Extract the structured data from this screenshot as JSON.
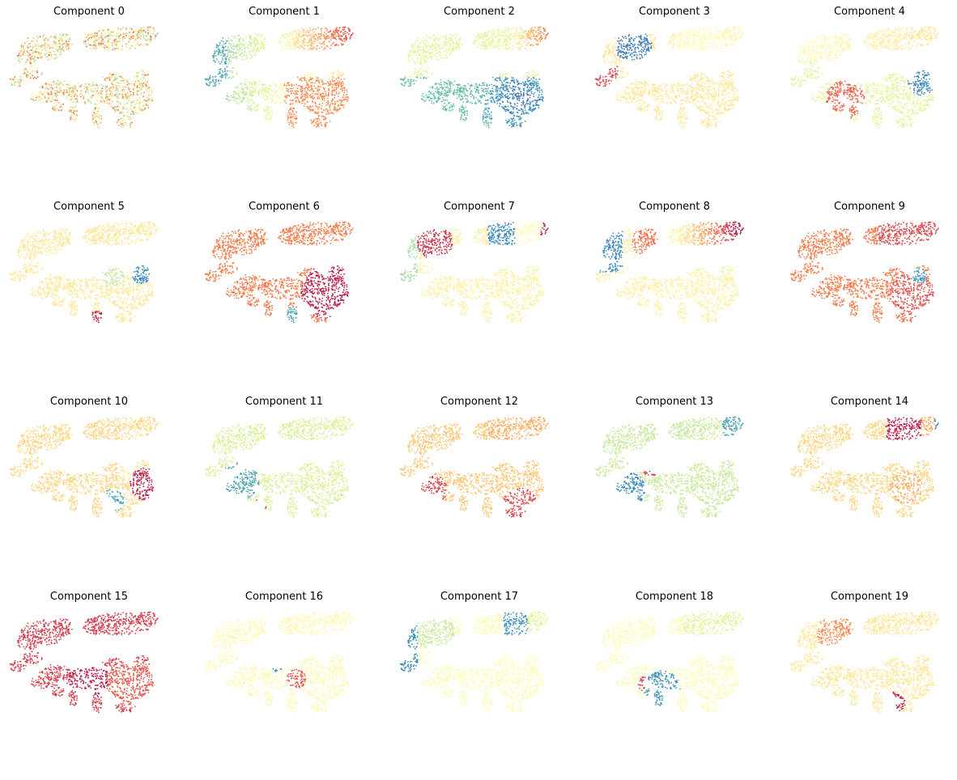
{
  "figure": {
    "layout": {
      "rows": 4,
      "columns": 5
    },
    "colormap": "Spectral",
    "axes": "off"
  },
  "chart_data": [
    {
      "type": "scatter",
      "title": "Component 0",
      "pattern": "mixed"
    },
    {
      "type": "scatter",
      "title": "Component 1",
      "pattern": "gradient-x"
    },
    {
      "type": "scatter",
      "title": "Component 2",
      "pattern": "gradient-bottom-blue"
    },
    {
      "type": "scatter",
      "title": "Component 3",
      "pattern": "blue-top-left"
    },
    {
      "type": "scatter",
      "title": "Component 4",
      "pattern": "blue-right-red-bottom"
    },
    {
      "type": "scatter",
      "title": "Component 5",
      "pattern": "pale-with-spots"
    },
    {
      "type": "scatter",
      "title": "Component 6",
      "pattern": "orange-red-right"
    },
    {
      "type": "scatter",
      "title": "Component 7",
      "pattern": "red-blue-top"
    },
    {
      "type": "scatter",
      "title": "Component 8",
      "pattern": "blue-left-orange-top"
    },
    {
      "type": "scatter",
      "title": "Component 9",
      "pattern": "orange-all"
    },
    {
      "type": "scatter",
      "title": "Component 10",
      "pattern": "red-right-blue-bottom"
    },
    {
      "type": "scatter",
      "title": "Component 11",
      "pattern": "green-blue-left"
    },
    {
      "type": "scatter",
      "title": "Component 12",
      "pattern": "orange-red-bottom"
    },
    {
      "type": "scatter",
      "title": "Component 13",
      "pattern": "green-blue-bottom-left"
    },
    {
      "type": "scatter",
      "title": "Component 14",
      "pattern": "red-top-band"
    },
    {
      "type": "scatter",
      "title": "Component 15",
      "pattern": "red-orange-all"
    },
    {
      "type": "scatter",
      "title": "Component 16",
      "pattern": "pale-with-spots-2"
    },
    {
      "type": "scatter",
      "title": "Component 17",
      "pattern": "blue-top-left-green"
    },
    {
      "type": "scatter",
      "title": "Component 18",
      "pattern": "blue-bottom-band"
    },
    {
      "type": "scatter",
      "title": "Component 19",
      "pattern": "orange-red-bottom-right"
    }
  ]
}
